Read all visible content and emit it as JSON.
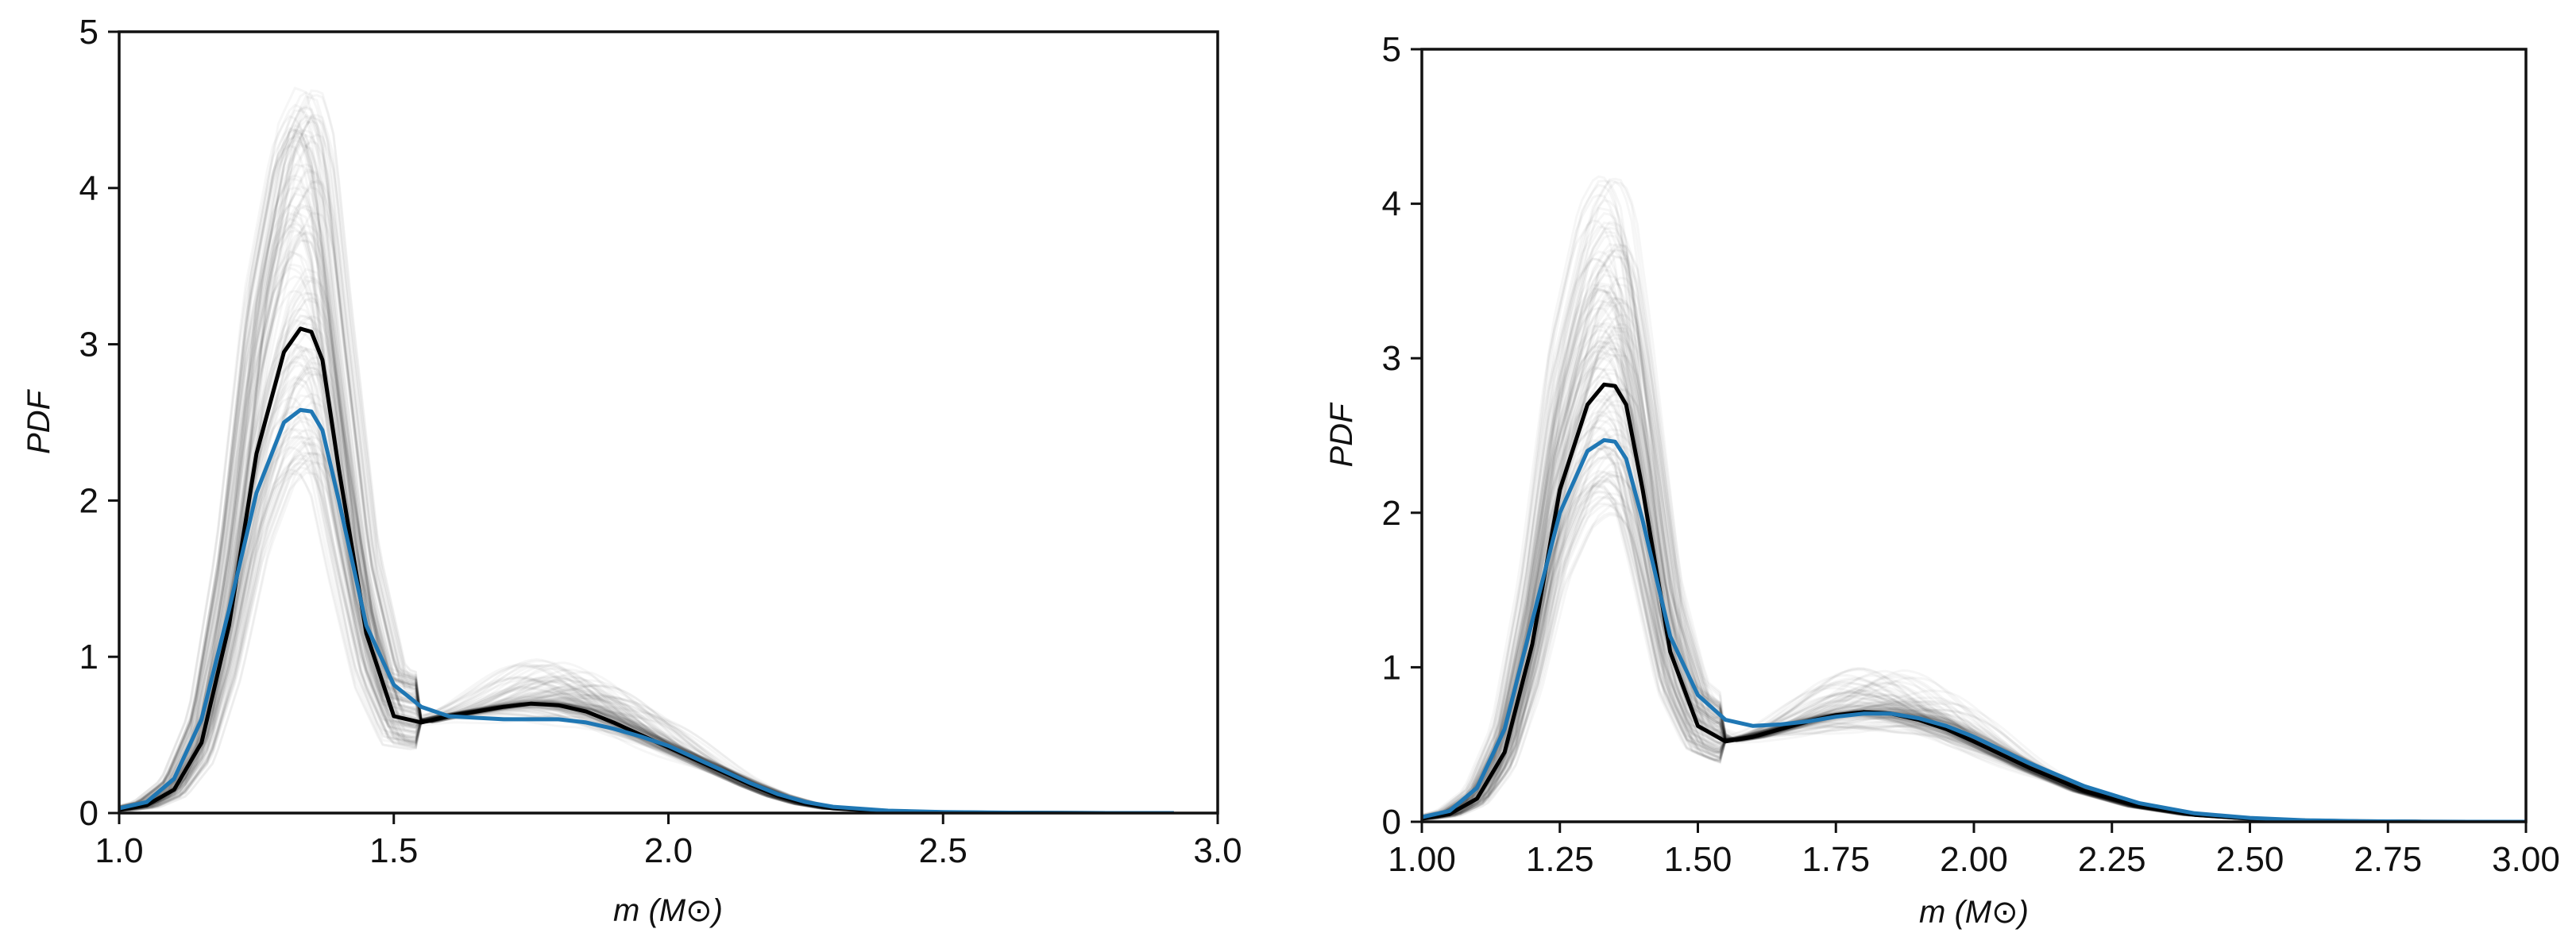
{
  "chart_data": [
    {
      "type": "line",
      "title": "",
      "xlabel": "m (M⊙)",
      "ylabel": "PDF",
      "xlim": [
        1.0,
        3.0
      ],
      "ylim": [
        0,
        5
      ],
      "xticks": [
        "1.0",
        "1.5",
        "2.0",
        "2.5",
        "3.0"
      ],
      "yticks": [
        "0",
        "1",
        "2",
        "3",
        "4",
        "5"
      ],
      "grid": false,
      "legend": "none",
      "posterior_samples": {
        "color": "#000000",
        "description_hidden": true
      },
      "series": [
        {
          "color": "#000000",
          "x": [
            1.0,
            1.05,
            1.1,
            1.15,
            1.2,
            1.25,
            1.3,
            1.33,
            1.35,
            1.37,
            1.4,
            1.45,
            1.5,
            1.55,
            1.6,
            1.65,
            1.7,
            1.75,
            1.8,
            1.85,
            1.9,
            1.95,
            2.0,
            2.05,
            2.1,
            2.15,
            2.2,
            2.25,
            2.3,
            2.4,
            2.5,
            2.6,
            2.7,
            2.8,
            2.92
          ],
          "y": [
            0.02,
            0.05,
            0.15,
            0.45,
            1.2,
            2.3,
            2.95,
            3.1,
            3.08,
            2.9,
            2.2,
            1.15,
            0.62,
            0.58,
            0.62,
            0.65,
            0.68,
            0.7,
            0.69,
            0.65,
            0.58,
            0.5,
            0.42,
            0.34,
            0.26,
            0.18,
            0.11,
            0.06,
            0.03,
            0.01,
            0.005,
            0.002,
            0.001,
            0.0,
            0.0
          ]
        },
        {
          "color": "#1f77b4",
          "x": [
            1.0,
            1.05,
            1.1,
            1.15,
            1.2,
            1.25,
            1.3,
            1.33,
            1.35,
            1.37,
            1.4,
            1.45,
            1.5,
            1.55,
            1.6,
            1.65,
            1.7,
            1.75,
            1.8,
            1.85,
            1.9,
            1.95,
            2.0,
            2.05,
            2.1,
            2.15,
            2.2,
            2.25,
            2.3,
            2.4,
            2.5,
            2.6,
            2.7,
            2.8,
            2.92
          ],
          "y": [
            0.03,
            0.07,
            0.22,
            0.6,
            1.3,
            2.05,
            2.5,
            2.58,
            2.57,
            2.45,
            2.0,
            1.2,
            0.82,
            0.68,
            0.62,
            0.61,
            0.6,
            0.6,
            0.6,
            0.58,
            0.54,
            0.49,
            0.43,
            0.35,
            0.27,
            0.19,
            0.12,
            0.07,
            0.04,
            0.015,
            0.006,
            0.003,
            0.001,
            0.0,
            0.0
          ]
        }
      ]
    },
    {
      "type": "line",
      "title": "",
      "xlabel": "m (M⊙)",
      "ylabel": "PDF",
      "xlim": [
        1.0,
        3.0
      ],
      "ylim": [
        0,
        5
      ],
      "xticks": [
        "1.00",
        "1.25",
        "1.50",
        "1.75",
        "2.00",
        "2.25",
        "2.50",
        "2.75",
        "3.00"
      ],
      "yticks": [
        "0",
        "1",
        "2",
        "3",
        "4",
        "5"
      ],
      "grid": false,
      "legend": "none",
      "posterior_samples": {
        "color": "#000000",
        "description_hidden": true
      },
      "series": [
        {
          "color": "#000000",
          "x": [
            1.0,
            1.05,
            1.1,
            1.15,
            1.2,
            1.25,
            1.3,
            1.33,
            1.35,
            1.37,
            1.4,
            1.45,
            1.5,
            1.55,
            1.6,
            1.65,
            1.7,
            1.75,
            1.8,
            1.85,
            1.9,
            1.95,
            2.0,
            2.1,
            2.2,
            2.3,
            2.4,
            2.5,
            2.6,
            2.7,
            2.8,
            2.9,
            3.0
          ],
          "y": [
            0.02,
            0.05,
            0.15,
            0.45,
            1.15,
            2.15,
            2.7,
            2.83,
            2.82,
            2.7,
            2.15,
            1.1,
            0.62,
            0.52,
            0.55,
            0.6,
            0.65,
            0.69,
            0.71,
            0.7,
            0.66,
            0.6,
            0.52,
            0.35,
            0.2,
            0.1,
            0.045,
            0.02,
            0.008,
            0.003,
            0.001,
            0.0,
            0.0
          ]
        },
        {
          "color": "#1f77b4",
          "x": [
            1.0,
            1.05,
            1.1,
            1.15,
            1.2,
            1.25,
            1.3,
            1.33,
            1.35,
            1.37,
            1.4,
            1.45,
            1.5,
            1.55,
            1.6,
            1.65,
            1.7,
            1.75,
            1.8,
            1.85,
            1.9,
            1.95,
            2.0,
            2.1,
            2.2,
            2.3,
            2.4,
            2.5,
            2.6,
            2.7,
            2.8,
            2.9,
            3.0
          ],
          "y": [
            0.03,
            0.07,
            0.22,
            0.6,
            1.3,
            2.0,
            2.4,
            2.47,
            2.46,
            2.35,
            1.95,
            1.2,
            0.82,
            0.66,
            0.62,
            0.63,
            0.65,
            0.68,
            0.7,
            0.7,
            0.67,
            0.62,
            0.55,
            0.38,
            0.23,
            0.12,
            0.055,
            0.025,
            0.01,
            0.004,
            0.001,
            0.0,
            0.0
          ]
        }
      ]
    }
  ]
}
